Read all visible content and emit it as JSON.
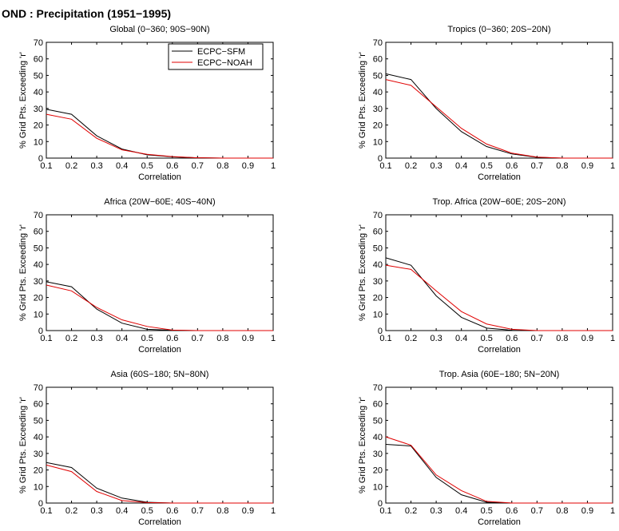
{
  "figure": {
    "title": "OND : Precipitation (1951−1995)"
  },
  "colors": {
    "ECPC-SFM": "#000000",
    "ECPC-NOAH": "#e00000"
  },
  "chart_data": [
    {
      "type": "line",
      "title": "Global (0−360; 90S−90N)",
      "xlabel": "Correlation",
      "ylabel": "% Grid Pts. Exceeding 'r'",
      "xlim": [
        0.1,
        1
      ],
      "ylim": [
        0,
        70
      ],
      "xticks": [
        "0.1",
        "0.2",
        "0.3",
        "0.4",
        "0.5",
        "0.6",
        "0.7",
        "0.8",
        "0.9",
        "1"
      ],
      "yticks": [
        "0",
        "10",
        "20",
        "30",
        "40",
        "50",
        "60",
        "70"
      ],
      "x": [
        0.1,
        0.2,
        0.3,
        0.4,
        0.5,
        0.6,
        0.7,
        0.8,
        0.9,
        1.0
      ],
      "legend": "top-right",
      "series": [
        {
          "name": "ECPC−SFM",
          "values": [
            29.5,
            26.5,
            13.5,
            5.5,
            2.0,
            0.8,
            0.2,
            0,
            0,
            0
          ]
        },
        {
          "name": "ECPC−NOAH",
          "values": [
            26.5,
            23.5,
            12.0,
            5.0,
            2.3,
            0.9,
            0.2,
            0,
            0,
            0
          ]
        }
      ]
    },
    {
      "type": "line",
      "title": "Tropics (0−360; 20S−20N)",
      "xlabel": "Correlation",
      "ylabel": "% Grid Pts. Exceeding 'r'",
      "xlim": [
        0.1,
        1
      ],
      "ylim": [
        0,
        70
      ],
      "xticks": [
        "0.1",
        "0.2",
        "0.3",
        "0.4",
        "0.5",
        "0.6",
        "0.7",
        "0.8",
        "0.9",
        "1"
      ],
      "yticks": [
        "0",
        "10",
        "20",
        "30",
        "40",
        "50",
        "60",
        "70"
      ],
      "x": [
        0.1,
        0.2,
        0.3,
        0.4,
        0.5,
        0.6,
        0.7,
        0.8,
        0.9,
        1.0
      ],
      "series": [
        {
          "name": "ECPC−SFM",
          "values": [
            51.0,
            47.5,
            30.0,
            16.0,
            7.0,
            2.5,
            0.5,
            0,
            0,
            0
          ]
        },
        {
          "name": "ECPC−NOAH",
          "values": [
            47.5,
            44.0,
            31.0,
            18.0,
            8.5,
            3.0,
            0.6,
            0,
            0,
            0
          ]
        }
      ]
    },
    {
      "type": "line",
      "title": "Africa (20W−60E; 40S−40N)",
      "xlabel": "Correlation",
      "ylabel": "% Grid Pts. Exceeding 'r'",
      "xlim": [
        0.1,
        1
      ],
      "ylim": [
        0,
        70
      ],
      "xticks": [
        "0.1",
        "0.2",
        "0.3",
        "0.4",
        "0.5",
        "0.6",
        "0.7",
        "0.8",
        "0.9",
        "1"
      ],
      "yticks": [
        "0",
        "10",
        "20",
        "30",
        "40",
        "50",
        "60",
        "70"
      ],
      "x": [
        0.1,
        0.2,
        0.3,
        0.4,
        0.5,
        0.6,
        0.7,
        0.8,
        0.9,
        1.0
      ],
      "series": [
        {
          "name": "ECPC−SFM",
          "values": [
            29.5,
            26.5,
            13.0,
            4.5,
            0.8,
            0.2,
            0,
            0,
            0,
            0
          ]
        },
        {
          "name": "ECPC−NOAH",
          "values": [
            27.5,
            24.0,
            14.0,
            6.5,
            2.5,
            0.3,
            0,
            0,
            0,
            0
          ]
        }
      ]
    },
    {
      "type": "line",
      "title": "Trop. Africa (20W−60E; 20S−20N)",
      "xlabel": "Correlation",
      "ylabel": "% Grid Pts. Exceeding 'r'",
      "xlim": [
        0.1,
        1
      ],
      "ylim": [
        0,
        70
      ],
      "xticks": [
        "0.1",
        "0.2",
        "0.3",
        "0.4",
        "0.5",
        "0.6",
        "0.7",
        "0.8",
        "0.9",
        "1"
      ],
      "yticks": [
        "0",
        "10",
        "20",
        "30",
        "40",
        "50",
        "60",
        "70"
      ],
      "x": [
        0.1,
        0.2,
        0.3,
        0.4,
        0.5,
        0.6,
        0.7,
        0.8,
        0.9,
        1.0
      ],
      "series": [
        {
          "name": "ECPC−SFM",
          "values": [
            44.0,
            39.5,
            21.0,
            8.0,
            1.5,
            0.2,
            0,
            0,
            0,
            0
          ]
        },
        {
          "name": "ECPC−NOAH",
          "values": [
            39.5,
            37.0,
            24.0,
            11.5,
            4.0,
            0.8,
            0,
            0,
            0,
            0
          ]
        }
      ]
    },
    {
      "type": "line",
      "title": "Asia (60S−180; 5N−80N)",
      "xlabel": "Correlation",
      "ylabel": "% Grid Pts. Exceeding 'r'",
      "xlim": [
        0.1,
        1
      ],
      "ylim": [
        0,
        70
      ],
      "xticks": [
        "0.1",
        "0.2",
        "0.3",
        "0.4",
        "0.5",
        "0.6",
        "0.7",
        "0.8",
        "0.9",
        "1"
      ],
      "yticks": [
        "0",
        "10",
        "20",
        "30",
        "40",
        "50",
        "60",
        "70"
      ],
      "x": [
        0.1,
        0.2,
        0.3,
        0.4,
        0.5,
        0.6,
        0.7,
        0.8,
        0.9,
        1.0
      ],
      "series": [
        {
          "name": "ECPC−SFM",
          "values": [
            24.5,
            21.5,
            9.0,
            3.0,
            0.5,
            0,
            0,
            0,
            0,
            0
          ]
        },
        {
          "name": "ECPC−NOAH",
          "values": [
            23.0,
            19.0,
            7.0,
            1.5,
            0.3,
            0,
            0,
            0,
            0,
            0
          ]
        }
      ]
    },
    {
      "type": "line",
      "title": "Trop. Asia (60E−180; 5N−20N)",
      "xlabel": "Correlation",
      "ylabel": "% Grid Pts. Exceeding 'r'",
      "xlim": [
        0.1,
        1
      ],
      "ylim": [
        0,
        70
      ],
      "xticks": [
        "0.1",
        "0.2",
        "0.3",
        "0.4",
        "0.5",
        "0.6",
        "0.7",
        "0.8",
        "0.9",
        "1"
      ],
      "yticks": [
        "0",
        "10",
        "20",
        "30",
        "40",
        "50",
        "60",
        "70"
      ],
      "x": [
        0.1,
        0.2,
        0.3,
        0.4,
        0.5,
        0.6,
        0.7,
        0.8,
        0.9,
        1.0
      ],
      "series": [
        {
          "name": "ECPC−SFM",
          "values": [
            35.5,
            34.5,
            15.5,
            5.0,
            0.5,
            0,
            0,
            0,
            0,
            0
          ]
        },
        {
          "name": "ECPC−NOAH",
          "values": [
            40.0,
            35.0,
            17.0,
            7.5,
            1.0,
            0,
            0,
            0,
            0,
            0
          ]
        }
      ]
    }
  ]
}
